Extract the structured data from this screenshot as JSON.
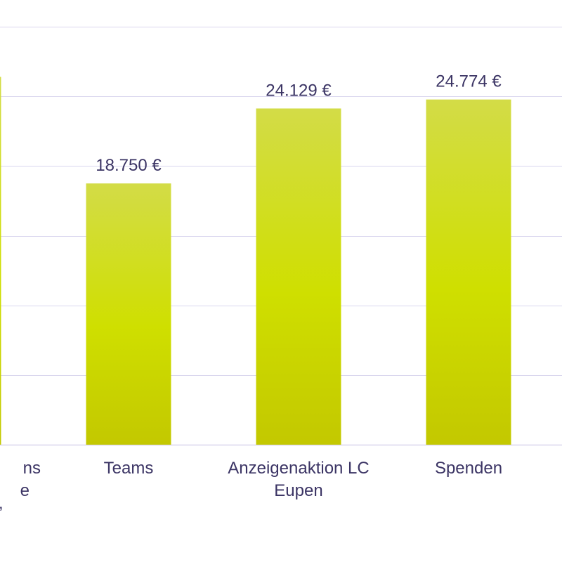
{
  "chart_data": {
    "type": "bar",
    "categories": [
      "",
      "Teams",
      "Anzeigenaktion LC Eupen",
      "Spenden"
    ],
    "category_lines": [
      [
        "ns",
        "e",
        "’"
      ],
      [
        "Teams"
      ],
      [
        "Anzeigenaktion LC",
        "Eupen"
      ],
      [
        "Spenden"
      ]
    ],
    "values": [
      26400,
      18750,
      24129,
      24774
    ],
    "value_labels": [
      "",
      "18.750 €",
      "24.129 €",
      "24.774 €"
    ],
    "title": "",
    "xlabel": "",
    "ylabel": "",
    "ylim": [
      0,
      30000
    ],
    "gridline_step": 5000,
    "grid": true,
    "tick_labels_visible": false,
    "colors": {
      "bar_top": "#d3dc47",
      "bar_mid": "#cfdf00",
      "bar_bottom": "#c3c800",
      "grid": "#d9d6ee",
      "text": "#3b3464"
    }
  }
}
